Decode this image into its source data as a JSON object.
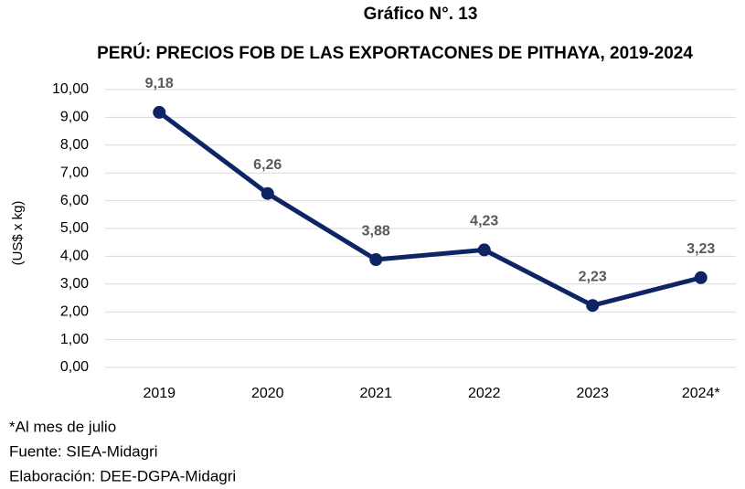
{
  "chart_data": {
    "type": "line",
    "title": "Gráfico N°. 13",
    "subtitle": "PERÚ: PRECIOS FOB DE LAS EXPORTACONES DE PITHAYA, 2019-2024",
    "y_label": "(US$ x kg)",
    "categories": [
      "2019",
      "2020",
      "2021",
      "2022",
      "2023",
      "2024*"
    ],
    "values": [
      9.18,
      6.26,
      3.88,
      4.23,
      2.23,
      3.23
    ],
    "value_labels": [
      "9,18",
      "6,26",
      "3,88",
      "4,23",
      "2,23",
      "3,23"
    ],
    "color": "#0e2465",
    "ylim": [
      0,
      10
    ],
    "yticks": [
      {
        "value": 0,
        "label": "0,00"
      },
      {
        "value": 1,
        "label": "1,00"
      },
      {
        "value": 2,
        "label": "2,00"
      },
      {
        "value": 3,
        "label": "3,00"
      },
      {
        "value": 4,
        "label": "4,00"
      },
      {
        "value": 5,
        "label": "5,00"
      },
      {
        "value": 6,
        "label": "6,00"
      },
      {
        "value": 7,
        "label": "7,00"
      },
      {
        "value": 8,
        "label": "8,00"
      },
      {
        "value": 9,
        "label": "9,00"
      },
      {
        "value": 10,
        "label": "10,00"
      }
    ],
    "grid": true,
    "notes": [
      "*Al mes de julio",
      "Fuente: SIEA-Midagri",
      "Elaboración: DEE-DGPA-Midagri"
    ]
  }
}
